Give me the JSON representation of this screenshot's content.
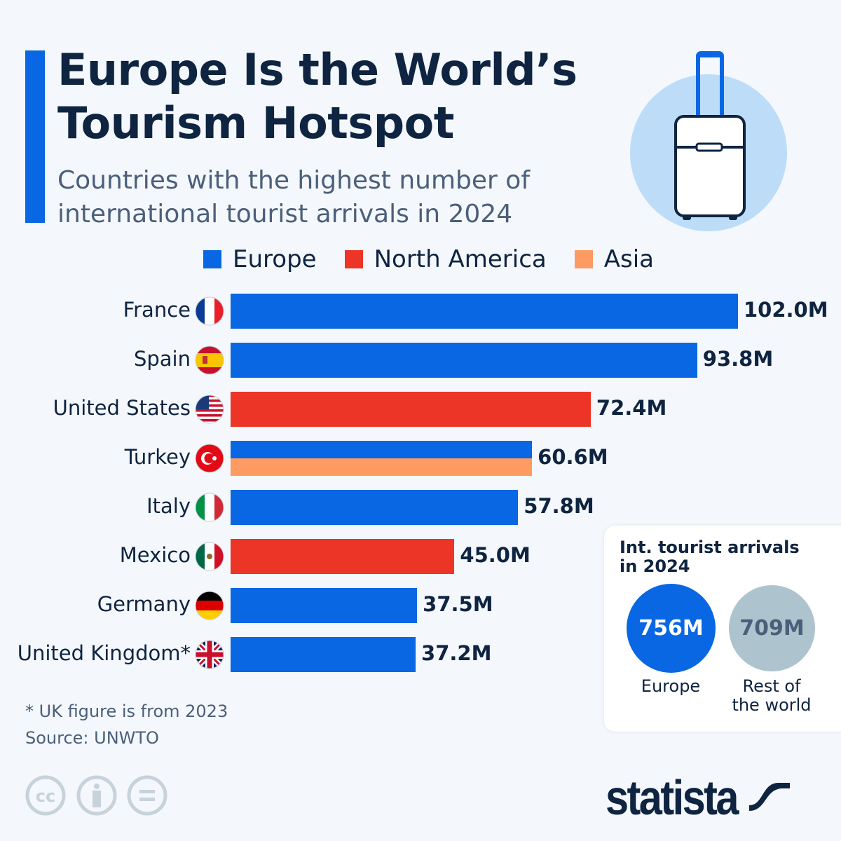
{
  "header": {
    "title_line1": "Europe Is the World’s",
    "title_line2": "Tourism Hotspot",
    "subtitle_line1": "Countries with the highest number of",
    "subtitle_line2": "international tourist arrivals in 2024"
  },
  "colors": {
    "Europe": "#0967e3",
    "North America": "#ec3427",
    "Asia": "#fd9b63",
    "rest": "#adc4ce"
  },
  "chart_data": {
    "type": "bar",
    "orientation": "horizontal",
    "unit": "M",
    "legend": [
      "Europe",
      "North America",
      "Asia"
    ],
    "categories": [
      "France",
      "Spain",
      "United States",
      "Turkey",
      "Italy",
      "Mexico",
      "Germany",
      "United Kingdom*"
    ],
    "values": [
      102.0,
      93.8,
      72.4,
      60.6,
      57.8,
      45.0,
      37.5,
      37.2
    ],
    "labels": [
      "102.0M",
      "93.8M",
      "72.4M",
      "60.6M",
      "57.8M",
      "45.0M",
      "37.5M",
      "37.2M"
    ],
    "regions": [
      [
        "Europe"
      ],
      [
        "Europe"
      ],
      [
        "North America"
      ],
      [
        "Europe",
        "Asia"
      ],
      [
        "Europe"
      ],
      [
        "North America"
      ],
      [
        "Europe"
      ],
      [
        "Europe"
      ]
    ],
    "flags": [
      "france",
      "spain",
      "usa",
      "turkey",
      "italy",
      "mexico",
      "germany",
      "uk"
    ],
    "xlim": [
      0,
      102.0
    ],
    "grid": false,
    "legend_position": "top"
  },
  "box": {
    "title_line1": "Int. tourist arrivals",
    "title_line2": "in 2024",
    "europe_value": "756M",
    "europe_label": "Europe",
    "rest_value": "709M",
    "rest_label_line1": "Rest of",
    "rest_label_line2": "the world"
  },
  "footer": {
    "note": "* UK figure is from 2023",
    "source": "Source: UNWTO",
    "brand": "statista"
  }
}
